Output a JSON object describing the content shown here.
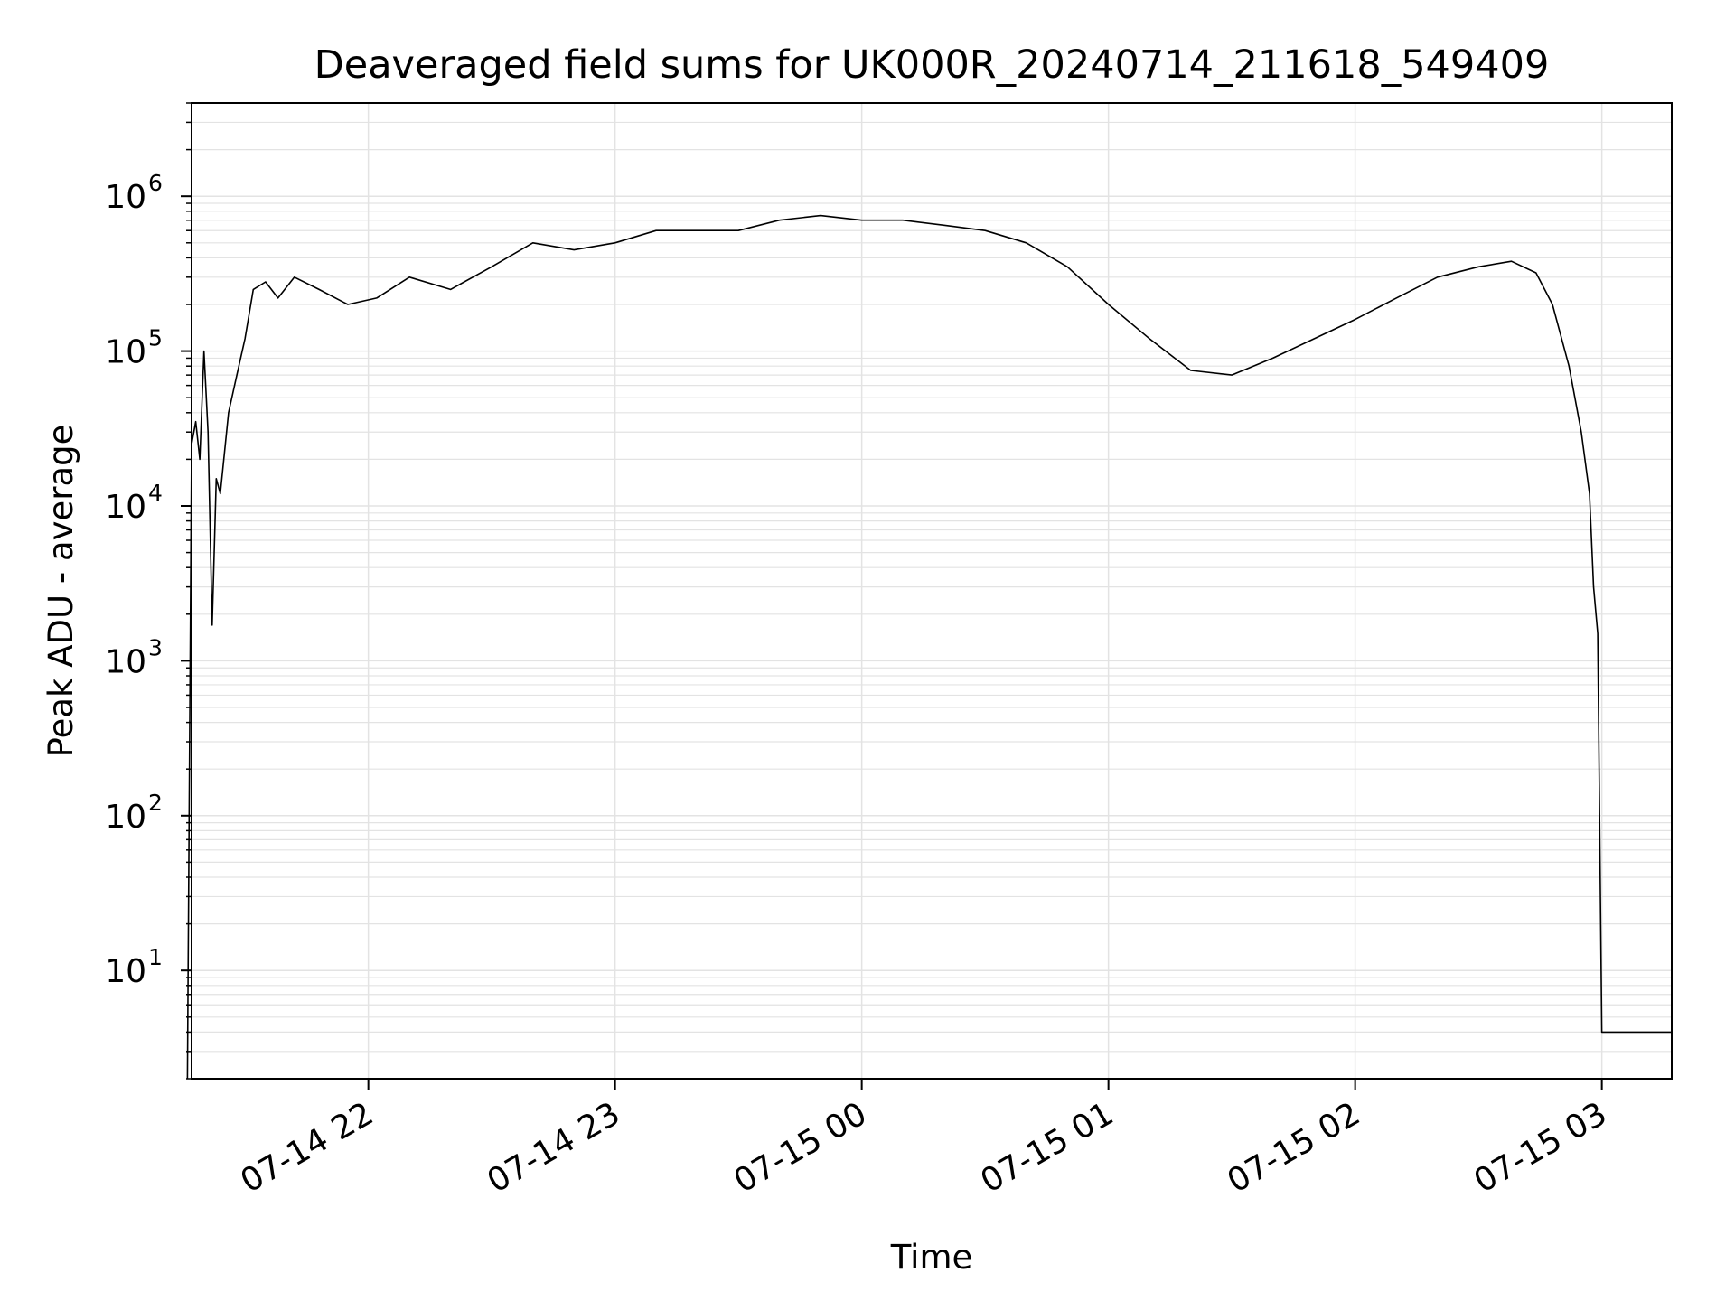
{
  "chart_data": {
    "type": "line",
    "title": "Deaveraged field sums for UK000R_20240714_211618_549409",
    "xlabel": "Time",
    "ylabel": "Peak ADU - average",
    "yscale": "log",
    "grid": true,
    "colors": {
      "line": "#000000",
      "grid": "#e3e3e3",
      "axes": "#000000"
    },
    "xlim": [
      "2024-07-14 21:17",
      "2024-07-15 03:17"
    ],
    "ylim": [
      2,
      4000000
    ],
    "x_ticks": [
      {
        "value": "2024-07-14 22:00",
        "label": "07-14 22"
      },
      {
        "value": "2024-07-14 23:00",
        "label": "07-14 23"
      },
      {
        "value": "2024-07-15 00:00",
        "label": "07-15 00"
      },
      {
        "value": "2024-07-15 01:00",
        "label": "07-15 01"
      },
      {
        "value": "2024-07-15 02:00",
        "label": "07-15 02"
      },
      {
        "value": "2024-07-15 03:00",
        "label": "07-15 03"
      }
    ],
    "y_ticks": [
      {
        "value": 10,
        "base": "10",
        "exp": "1"
      },
      {
        "value": 100,
        "base": "10",
        "exp": "2"
      },
      {
        "value": 1000,
        "base": "10",
        "exp": "3"
      },
      {
        "value": 10000,
        "base": "10",
        "exp": "4"
      },
      {
        "value": 100000,
        "base": "10",
        "exp": "5"
      },
      {
        "value": 1000000,
        "base": "10",
        "exp": "6"
      }
    ],
    "series": [
      {
        "x": [
          "2024-07-14 21:16",
          "2024-07-14 21:17",
          "2024-07-14 21:18",
          "2024-07-14 21:19",
          "2024-07-14 21:20",
          "2024-07-14 21:21",
          "2024-07-14 21:22",
          "2024-07-14 21:23",
          "2024-07-14 21:24",
          "2024-07-14 21:26",
          "2024-07-14 21:28",
          "2024-07-14 21:30",
          "2024-07-14 21:32",
          "2024-07-14 21:35",
          "2024-07-14 21:38",
          "2024-07-14 21:42",
          "2024-07-14 21:48",
          "2024-07-14 21:55",
          "2024-07-14 22:02",
          "2024-07-14 22:10",
          "2024-07-14 22:20",
          "2024-07-14 22:30",
          "2024-07-14 22:40",
          "2024-07-14 22:50",
          "2024-07-14 23:00",
          "2024-07-14 23:10",
          "2024-07-14 23:20",
          "2024-07-14 23:30",
          "2024-07-14 23:40",
          "2024-07-14 23:50",
          "2024-07-15 00:00",
          "2024-07-15 00:10",
          "2024-07-15 00:20",
          "2024-07-15 00:30",
          "2024-07-15 00:40",
          "2024-07-15 00:50",
          "2024-07-15 01:00",
          "2024-07-15 01:10",
          "2024-07-15 01:20",
          "2024-07-15 01:30",
          "2024-07-15 01:40",
          "2024-07-15 01:50",
          "2024-07-15 02:00",
          "2024-07-15 02:10",
          "2024-07-15 02:20",
          "2024-07-15 02:30",
          "2024-07-15 02:38",
          "2024-07-15 02:44",
          "2024-07-15 02:48",
          "2024-07-15 02:52",
          "2024-07-15 02:55",
          "2024-07-15 02:57",
          "2024-07-15 02:58",
          "2024-07-15 02:59",
          "2024-07-15 03:00",
          "2024-07-15 03:05",
          "2024-07-15 03:10",
          "2024-07-15 03:17"
        ],
        "y": [
          2,
          25000,
          35000,
          20000,
          100000,
          30000,
          1700,
          15000,
          12000,
          40000,
          70000,
          120000,
          250000,
          280000,
          220000,
          300000,
          250000,
          200000,
          220000,
          300000,
          250000,
          350000,
          500000,
          450000,
          500000,
          600000,
          600000,
          600000,
          700000,
          750000,
          700000,
          700000,
          650000,
          600000,
          500000,
          350000,
          200000,
          120000,
          75000,
          70000,
          90000,
          120000,
          160000,
          220000,
          300000,
          350000,
          380000,
          320000,
          200000,
          80000,
          30000,
          12000,
          3000,
          1500,
          4,
          4,
          4,
          4
        ]
      }
    ]
  }
}
